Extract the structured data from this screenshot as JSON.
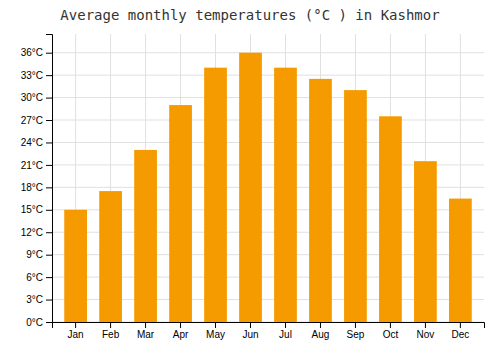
{
  "chart_data": {
    "type": "bar",
    "title": "Average monthly temperatures (°C ) in Kashmor",
    "categories": [
      "Jan",
      "Feb",
      "Mar",
      "Apr",
      "May",
      "Jun",
      "Jul",
      "Aug",
      "Sep",
      "Oct",
      "Nov",
      "Dec"
    ],
    "values": [
      15,
      17.5,
      23,
      29,
      34,
      36,
      34,
      32.5,
      31,
      27.5,
      21.5,
      16.5
    ],
    "color": "#F59B00",
    "ylim": [
      0,
      38.5
    ],
    "yticks": [
      {
        "value": 0,
        "label": "0°C"
      },
      {
        "value": 3,
        "label": "3°C"
      },
      {
        "value": 6,
        "label": "6°C"
      },
      {
        "value": 9,
        "label": "9°C"
      },
      {
        "value": 12,
        "label": "12°C"
      },
      {
        "value": 15,
        "label": "15°C"
      },
      {
        "value": 18,
        "label": "18°C"
      },
      {
        "value": 21,
        "label": "21°C"
      },
      {
        "value": 24,
        "label": "24°C"
      },
      {
        "value": 27,
        "label": "27°C"
      },
      {
        "value": 30,
        "label": "30°C"
      },
      {
        "value": 33,
        "label": "33°C"
      },
      {
        "value": 36,
        "label": "36°C"
      }
    ],
    "grid": true
  }
}
